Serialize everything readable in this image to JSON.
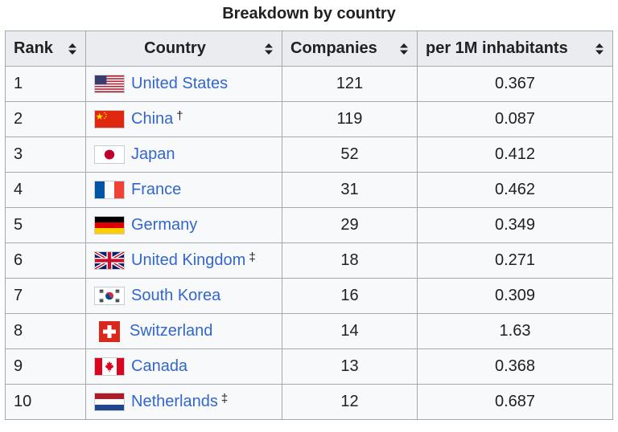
{
  "caption": "Breakdown by country",
  "columns": {
    "rank": "Rank",
    "country": "Country",
    "companies": "Companies",
    "per_million": "per 1M inhabitants"
  },
  "sort_icon": "sort-updown-icon",
  "colors": {
    "link": "#3366cc",
    "header_bg": "#eaecf0",
    "cell_bg": "#f8f9fa",
    "border": "#a2a9b1"
  },
  "rows": [
    {
      "rank": "1",
      "country": "United States",
      "note": "",
      "companies": "121",
      "per_million": "0.367",
      "flag": "us-flag-icon"
    },
    {
      "rank": "2",
      "country": "China",
      "note": "†",
      "companies": "119",
      "per_million": "0.087",
      "flag": "cn-flag-icon"
    },
    {
      "rank": "3",
      "country": "Japan",
      "note": "",
      "companies": "52",
      "per_million": "0.412",
      "flag": "jp-flag-icon"
    },
    {
      "rank": "4",
      "country": "France",
      "note": "",
      "companies": "31",
      "per_million": "0.462",
      "flag": "fr-flag-icon"
    },
    {
      "rank": "5",
      "country": "Germany",
      "note": "",
      "companies": "29",
      "per_million": "0.349",
      "flag": "de-flag-icon"
    },
    {
      "rank": "6",
      "country": "United Kingdom",
      "note": "‡",
      "companies": "18",
      "per_million": "0.271",
      "flag": "gb-flag-icon"
    },
    {
      "rank": "7",
      "country": "South Korea",
      "note": "",
      "companies": "16",
      "per_million": "0.309",
      "flag": "kr-flag-icon"
    },
    {
      "rank": "8",
      "country": "Switzerland",
      "note": "",
      "companies": "14",
      "per_million": "1.63",
      "flag": "ch-flag-icon"
    },
    {
      "rank": "9",
      "country": "Canada",
      "note": "",
      "companies": "13",
      "per_million": "0.368",
      "flag": "ca-flag-icon"
    },
    {
      "rank": "10",
      "country": "Netherlands",
      "note": "‡",
      "companies": "12",
      "per_million": "0.687",
      "flag": "nl-flag-icon"
    }
  ]
}
